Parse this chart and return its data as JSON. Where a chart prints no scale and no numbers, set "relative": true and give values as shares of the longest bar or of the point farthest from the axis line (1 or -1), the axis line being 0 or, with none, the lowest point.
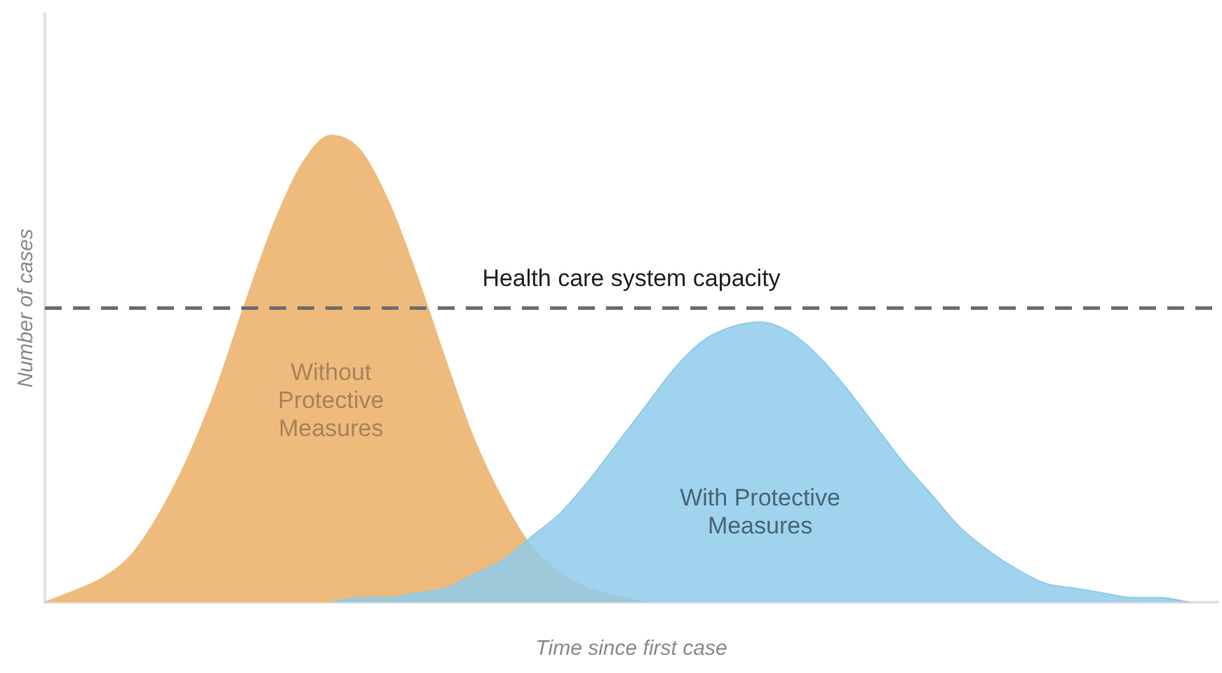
{
  "chart_data": {
    "type": "area",
    "xlabel": "Time since first case",
    "ylabel": "Number of cases",
    "relative": true,
    "grid": false,
    "legend": false,
    "categories": [
      null,
      null,
      null,
      null,
      null,
      null,
      null,
      null,
      null,
      null,
      null,
      null,
      null,
      null,
      null,
      null,
      null,
      null,
      null,
      null,
      null,
      null,
      null,
      null,
      null,
      null,
      null,
      null,
      null,
      null,
      null,
      null,
      null,
      null,
      null,
      null,
      null,
      null,
      null,
      null,
      null,
      null
    ],
    "series": [
      {
        "name": "Without Protective Measures",
        "color": "#eebb7d",
        "values": [
          0,
          0.024,
          0.052,
          0.1,
          0.19,
          0.31,
          0.46,
          0.64,
          0.81,
          0.94,
          1,
          0.97,
          0.86,
          0.7,
          0.52,
          0.35,
          0.22,
          0.12,
          0.064,
          0.03,
          0.013,
          0,
          null,
          null,
          null,
          null,
          null,
          null,
          null,
          null,
          null,
          null,
          null,
          null,
          null,
          null,
          null,
          null,
          null,
          null,
          null,
          null
        ]
      },
      {
        "name": "With Protective Measures",
        "color": "#8ecbeb",
        "values": [
          null,
          null,
          null,
          null,
          null,
          null,
          null,
          null,
          null,
          null,
          0,
          0.01,
          0.01,
          0.02,
          0.03,
          0.06,
          0.09,
          0.14,
          0.19,
          0.26,
          0.34,
          0.42,
          0.5,
          0.56,
          0.59,
          0.6,
          0.58,
          0.53,
          0.46,
          0.38,
          0.3,
          0.23,
          0.16,
          0.11,
          0.07,
          0.04,
          0.03,
          0.02,
          0.01,
          0.01,
          0,
          null
        ]
      }
    ],
    "ref_lines": [
      {
        "axis": "y",
        "value": 0.63,
        "label": "Health care system capacity",
        "line_style": "dashed",
        "color": "#6d6d6d"
      }
    ]
  }
}
